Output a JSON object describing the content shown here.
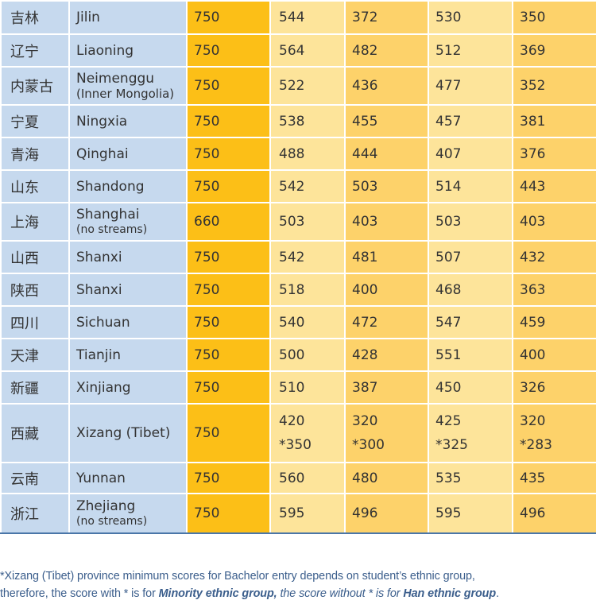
{
  "table": {
    "rows": [
      {
        "zh": "吉林",
        "en": "Jilin",
        "note": "",
        "max": "750",
        "c1": "544",
        "c2": "372",
        "c3": "530",
        "c4": "350"
      },
      {
        "zh": "辽宁",
        "en": "Liaoning",
        "note": "",
        "max": "750",
        "c1": "564",
        "c2": "482",
        "c3": "512",
        "c4": "369"
      },
      {
        "zh": "内蒙古",
        "en": "Neimenggu",
        "note": "(Inner Mongolia)",
        "max": "750",
        "c1": "522",
        "c2": "436",
        "c3": "477",
        "c4": "352"
      },
      {
        "zh": "宁夏",
        "en": "Ningxia",
        "note": "",
        "max": "750",
        "c1": "538",
        "c2": "455",
        "c3": "457",
        "c4": "381"
      },
      {
        "zh": "青海",
        "en": "Qinghai",
        "note": "",
        "max": "750",
        "c1": "488",
        "c2": "444",
        "c3": "407",
        "c4": "376"
      },
      {
        "zh": "山东",
        "en": "Shandong",
        "note": "",
        "max": "750",
        "c1": "542",
        "c2": "503",
        "c3": "514",
        "c4": "443"
      },
      {
        "zh": "上海",
        "en": "Shanghai",
        "note": "(no streams)",
        "max": "660",
        "c1": "503",
        "c2": "403",
        "c3": "503",
        "c4": "403"
      },
      {
        "zh": "山西",
        "en": "Shanxi",
        "note": "",
        "max": "750",
        "c1": "542",
        "c2": "481",
        "c3": "507",
        "c4": "432"
      },
      {
        "zh": "陕西",
        "en": "Shanxi",
        "note": "",
        "max": "750",
        "c1": "518",
        "c2": "400",
        "c3": "468",
        "c4": "363"
      },
      {
        "zh": "四川",
        "en": "Sichuan",
        "note": "",
        "max": "750",
        "c1": "540",
        "c2": "472",
        "c3": "547",
        "c4": "459"
      },
      {
        "zh": "天津",
        "en": "Tianjin",
        "note": "",
        "max": "750",
        "c1": "500",
        "c2": "428",
        "c3": "551",
        "c4": "400"
      },
      {
        "zh": "新疆",
        "en": "Xinjiang",
        "note": "",
        "max": "750",
        "c1": "510",
        "c2": "387",
        "c3": "450",
        "c4": "326"
      },
      {
        "zh": "西藏",
        "en": "Xizang (Tibet)",
        "note": "",
        "max": "750",
        "c1": "420",
        "c1b": "*350",
        "c2": "320",
        "c2b": "*300",
        "c3": "425",
        "c3b": "*325",
        "c4": "320",
        "c4b": "*283"
      },
      {
        "zh": "云南",
        "en": "Yunnan",
        "note": "",
        "max": "750",
        "c1": "560",
        "c2": "480",
        "c3": "535",
        "c4": "435"
      },
      {
        "zh": "浙江",
        "en": "Zhejiang",
        "note": "(no streams)",
        "max": "750",
        "c1": "595",
        "c2": "496",
        "c3": "595",
        "c4": "496"
      }
    ]
  },
  "footnote": {
    "line1": "*Xizang (Tibet) province minimum scores for Bachelor entry depends on student’s ethnic group,",
    "line2a": "therefore, the score with * is for ",
    "line2b": "Minority ethnic group,",
    "line2c": " the score without * is for ",
    "line2d": "Han ethnic group",
    "line2e": "."
  },
  "colors": {
    "province_cells": "#c6d9ee",
    "max_score_column": "#fcbf17",
    "light_columns": "#fde49a",
    "mid_columns": "#fdd26a",
    "footnote_text": "#3b5e8c"
  }
}
